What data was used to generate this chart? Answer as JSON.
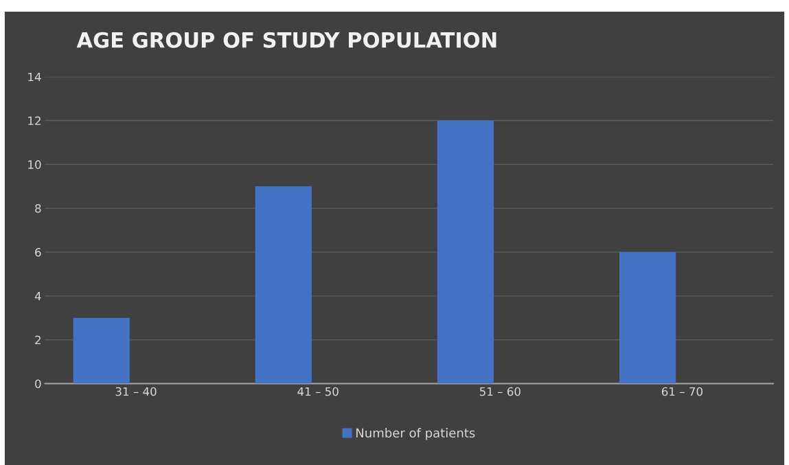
{
  "chart_data": {
    "type": "bar",
    "title": "AGE GROUP OF STUDY POPULATION",
    "categories": [
      "31 – 40",
      "41 – 50",
      "51 – 60",
      "61 – 70"
    ],
    "series": [
      {
        "name": "Number of patients",
        "color": "#4472c4",
        "values": [
          3,
          9,
          12,
          6
        ]
      }
    ],
    "ylim": [
      0,
      14
    ],
    "yticks": [
      0,
      2,
      4,
      6,
      8,
      10,
      12,
      14
    ],
    "grid": "y",
    "legend": "bottom"
  }
}
